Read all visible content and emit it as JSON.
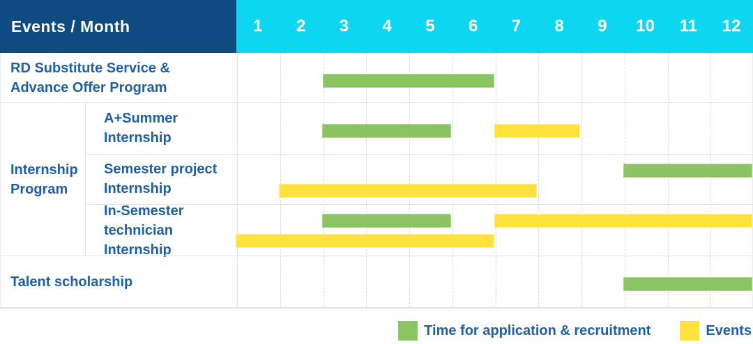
{
  "title": "Events / Month",
  "months": [
    "1",
    "2",
    "3",
    "4",
    "5",
    "6",
    "7",
    "8",
    "9",
    "10",
    "11",
    "12"
  ],
  "colors": {
    "header_bg": "#0e4b80",
    "months_bg": "#0cd6f0",
    "header_text": "#ffffff",
    "label_text": "#1f5fa6",
    "application_bar": "#8bc462",
    "events_bar": "#ffe33c"
  },
  "chart_data": {
    "type": "gantt",
    "x_unit": "month",
    "x_range": [
      1,
      12
    ],
    "series_names": [
      "Time for application & recruitment",
      "Events"
    ],
    "rows": [
      {
        "label": "RD Substitute Service &\nAdvance Offer Program",
        "group": "",
        "bars": [
          {
            "series": "Time for application & recruitment",
            "start_month": 3,
            "end_month": 6,
            "line": "single"
          }
        ]
      },
      {
        "label": "A+Summer\nInternship",
        "group": "Internship Program",
        "bars": [
          {
            "series": "Time for application & recruitment",
            "start_month": 3,
            "end_month": 5,
            "line": "single"
          },
          {
            "series": "Events",
            "start_month": 7,
            "end_month": 8,
            "line": "single"
          }
        ]
      },
      {
        "label": "Semester project\nInternship",
        "group": "Internship Program",
        "bars": [
          {
            "series": "Time for application & recruitment",
            "start_month": 10,
            "end_month": 12,
            "line": "top"
          },
          {
            "series": "Events",
            "start_month": 2,
            "end_month": 7,
            "line": "bottom"
          }
        ]
      },
      {
        "label": "In-Semester\ntechnician Internship",
        "group": "Internship Program",
        "bars": [
          {
            "series": "Time for application & recruitment",
            "start_month": 3,
            "end_month": 5,
            "line": "top"
          },
          {
            "series": "Events",
            "start_month": 7,
            "end_month": 12,
            "line": "top"
          },
          {
            "series": "Events",
            "start_month": 1,
            "end_month": 6,
            "line": "bottom"
          }
        ]
      },
      {
        "label": "Talent scholarship",
        "group": "",
        "bars": [
          {
            "series": "Time for application & recruitment",
            "start_month": 10,
            "end_month": 12,
            "line": "single"
          }
        ]
      }
    ]
  },
  "legend": [
    {
      "label": "Time for application & recruitment",
      "series": "Time for application & recruitment"
    },
    {
      "label": "Events",
      "series": "Events"
    }
  ]
}
